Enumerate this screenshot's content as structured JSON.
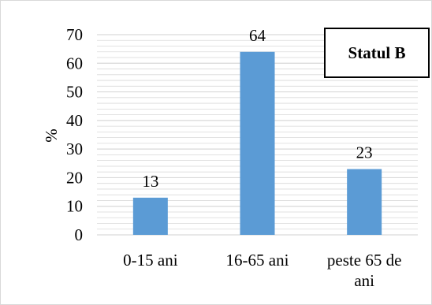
{
  "chart_data": {
    "type": "bar",
    "categories": [
      "0-15 ani",
      "16-65 ani",
      "peste 65 de ani"
    ],
    "category_lines": [
      [
        "0-15 ani"
      ],
      [
        "16-65 ani"
      ],
      [
        "peste 65 de",
        "ani"
      ]
    ],
    "values": [
      13,
      64,
      23
    ],
    "data_labels": [
      "13",
      "64",
      "23"
    ],
    "ylabel": "%",
    "xlabel": "",
    "ylim": [
      0,
      70
    ],
    "yticks": [
      0,
      10,
      20,
      30,
      40,
      50,
      60,
      70
    ],
    "minor_gridlines_step": 2,
    "grid": true,
    "bar_color": "#5b9bd5",
    "gridline_color": "#d9d9d9",
    "annotation_box": "Statul B",
    "annotation_placement": "top-right"
  }
}
